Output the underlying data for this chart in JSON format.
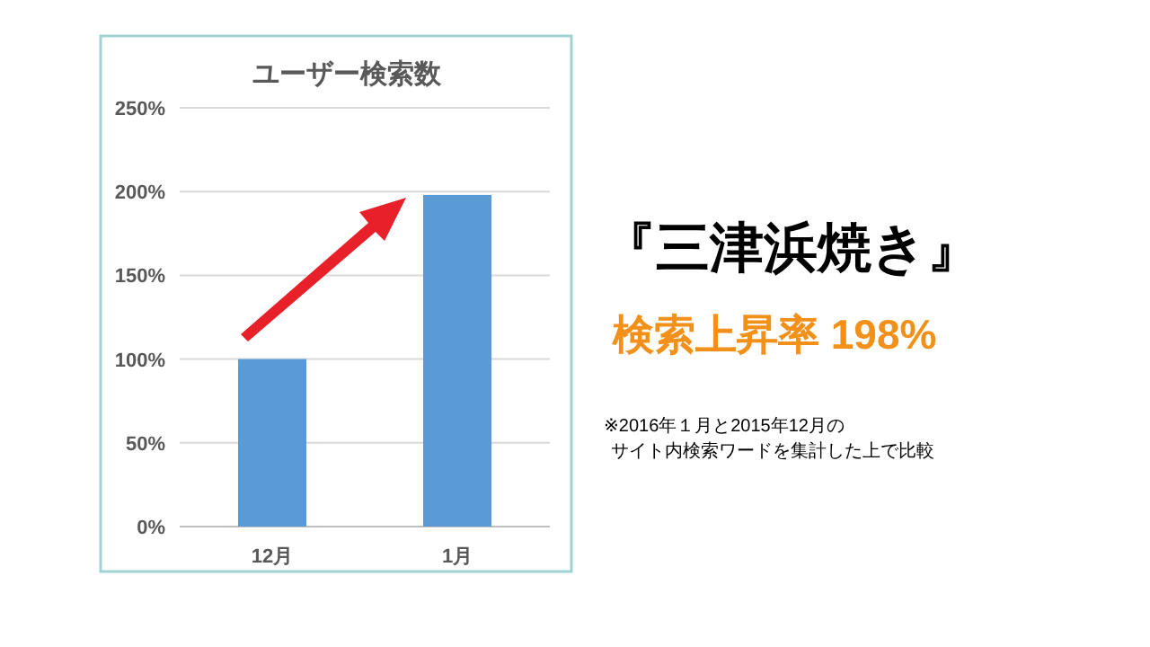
{
  "chart_data": {
    "type": "bar",
    "title": "ユーザー検索数",
    "categories": [
      "12月",
      "1月"
    ],
    "values": [
      100,
      198
    ],
    "color": "#5b9bd5",
    "ylim": [
      0,
      250
    ],
    "yticks": [
      {
        "value": 0,
        "label": "0%"
      },
      {
        "value": 50,
        "label": "50%"
      },
      {
        "value": 100,
        "label": "100%"
      },
      {
        "value": 150,
        "label": "150%"
      },
      {
        "value": 200,
        "label": "200%"
      },
      {
        "value": 250,
        "label": "250%"
      }
    ],
    "grid": "y",
    "annotations": [
      "『三津浜焼き』",
      "検索上昇率 198%",
      "※2016年１月と2015年12月の",
      "サイト内検索ワードを集計した上で比較"
    ]
  }
}
